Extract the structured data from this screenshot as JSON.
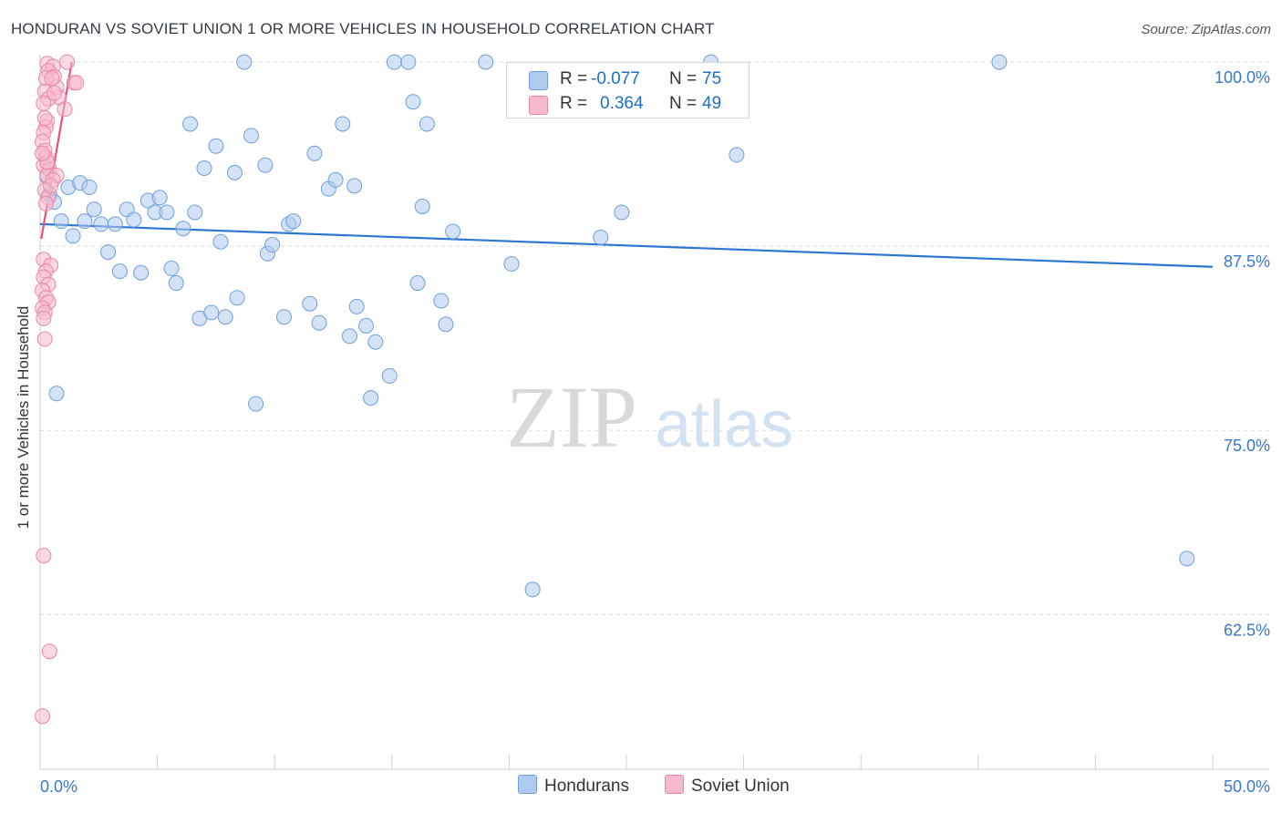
{
  "title": "HONDURAN VS SOVIET UNION 1 OR MORE VEHICLES IN HOUSEHOLD CORRELATION CHART",
  "source": "Source: ZipAtlas.com",
  "watermark": {
    "zip": "ZIP",
    "atlas": "atlas"
  },
  "legend": {
    "hondurans": {
      "r_label": "R =",
      "r_value": "-0.077",
      "n_label": "N =",
      "n_value": "75"
    },
    "soviet": {
      "r_label": "R =",
      "r_value": "0.364",
      "n_label": "N =",
      "n_value": "49"
    }
  },
  "bottom_legend": {
    "hondurans": "Hondurans",
    "soviet": "Soviet Union"
  },
  "colors": {
    "blue_fill": "#aecbef",
    "blue_stroke": "#6f9fd8",
    "blue_line": "#2f76d2",
    "pink_fill": "#f6b9cd",
    "pink_stroke": "#e887a7",
    "pink_line": "#e8517f",
    "tick_label": "#3b78c9",
    "grid": "#dddddd"
  },
  "chart_data": {
    "type": "scatter",
    "title": "HONDURAN VS SOVIET UNION 1 OR MORE VEHICLES IN HOUSEHOLD CORRELATION CHART",
    "xlabel": "",
    "ylabel": "1 or more Vehicles in Household",
    "xlim": [
      0,
      50
    ],
    "ylim": [
      52,
      100.5
    ],
    "x_tick_labels": [
      "0.0%",
      "50.0%"
    ],
    "y_ticks": [
      62.5,
      75.0,
      87.5,
      100.0
    ],
    "y_tick_labels": [
      "62.5%",
      "75.0%",
      "87.5%",
      "100.0%"
    ],
    "grid": true,
    "series": [
      {
        "name": "Hondurans",
        "r": -0.077,
        "n": 75,
        "trend": {
          "x": [
            0,
            50
          ],
          "y": [
            89.0,
            86.1
          ]
        },
        "points": [
          {
            "x": 0.4,
            "y": 91.0
          },
          {
            "x": 0.6,
            "y": 90.5
          },
          {
            "x": 0.7,
            "y": 77.5
          },
          {
            "x": 0.9,
            "y": 89.2
          },
          {
            "x": 1.2,
            "y": 91.5
          },
          {
            "x": 1.4,
            "y": 88.2
          },
          {
            "x": 1.7,
            "y": 91.8
          },
          {
            "x": 1.9,
            "y": 89.2
          },
          {
            "x": 2.1,
            "y": 91.5
          },
          {
            "x": 2.3,
            "y": 90.0
          },
          {
            "x": 2.6,
            "y": 89.0
          },
          {
            "x": 2.9,
            "y": 87.1
          },
          {
            "x": 3.2,
            "y": 89.0
          },
          {
            "x": 3.4,
            "y": 85.8
          },
          {
            "x": 3.7,
            "y": 90.0
          },
          {
            "x": 4.0,
            "y": 89.3
          },
          {
            "x": 4.3,
            "y": 85.7
          },
          {
            "x": 4.6,
            "y": 90.6
          },
          {
            "x": 4.9,
            "y": 89.8
          },
          {
            "x": 5.1,
            "y": 90.8
          },
          {
            "x": 5.4,
            "y": 89.8
          },
          {
            "x": 5.6,
            "y": 86.0
          },
          {
            "x": 5.8,
            "y": 85.0
          },
          {
            "x": 6.1,
            "y": 88.7
          },
          {
            "x": 6.4,
            "y": 95.8
          },
          {
            "x": 6.6,
            "y": 89.8
          },
          {
            "x": 6.8,
            "y": 82.6
          },
          {
            "x": 7.0,
            "y": 92.8
          },
          {
            "x": 7.3,
            "y": 83.0
          },
          {
            "x": 7.5,
            "y": 94.3
          },
          {
            "x": 7.7,
            "y": 87.8
          },
          {
            "x": 7.9,
            "y": 82.7
          },
          {
            "x": 8.3,
            "y": 92.5
          },
          {
            "x": 8.4,
            "y": 84.0
          },
          {
            "x": 8.7,
            "y": 100.0
          },
          {
            "x": 9.0,
            "y": 95.0
          },
          {
            "x": 9.2,
            "y": 76.8
          },
          {
            "x": 9.6,
            "y": 93.0
          },
          {
            "x": 9.7,
            "y": 87.0
          },
          {
            "x": 9.9,
            "y": 87.6
          },
          {
            "x": 10.4,
            "y": 82.7
          },
          {
            "x": 10.6,
            "y": 89.0
          },
          {
            "x": 10.8,
            "y": 89.2
          },
          {
            "x": 11.5,
            "y": 83.6
          },
          {
            "x": 11.7,
            "y": 93.8
          },
          {
            "x": 11.9,
            "y": 82.3
          },
          {
            "x": 12.3,
            "y": 91.4
          },
          {
            "x": 12.6,
            "y": 92.0
          },
          {
            "x": 12.9,
            "y": 95.8
          },
          {
            "x": 13.2,
            "y": 81.4
          },
          {
            "x": 13.4,
            "y": 91.6
          },
          {
            "x": 13.5,
            "y": 83.4
          },
          {
            "x": 13.9,
            "y": 82.1
          },
          {
            "x": 14.1,
            "y": 77.2
          },
          {
            "x": 14.3,
            "y": 81.0
          },
          {
            "x": 14.9,
            "y": 78.7
          },
          {
            "x": 15.1,
            "y": 100.0
          },
          {
            "x": 15.7,
            "y": 100.0
          },
          {
            "x": 15.9,
            "y": 97.3
          },
          {
            "x": 16.1,
            "y": 85.0
          },
          {
            "x": 16.3,
            "y": 90.2
          },
          {
            "x": 16.5,
            "y": 95.8
          },
          {
            "x": 17.1,
            "y": 83.8
          },
          {
            "x": 17.3,
            "y": 82.2
          },
          {
            "x": 17.6,
            "y": 88.5
          },
          {
            "x": 19.0,
            "y": 100.0
          },
          {
            "x": 20.1,
            "y": 86.3
          },
          {
            "x": 21.0,
            "y": 64.2
          },
          {
            "x": 23.9,
            "y": 88.1
          },
          {
            "x": 24.8,
            "y": 89.8
          },
          {
            "x": 28.6,
            "y": 100.0
          },
          {
            "x": 29.7,
            "y": 93.7
          },
          {
            "x": 40.9,
            "y": 100.0
          },
          {
            "x": 48.9,
            "y": 66.3
          },
          {
            "x": 0.3,
            "y": 92.2
          }
        ]
      },
      {
        "name": "Soviet Union",
        "r": 0.364,
        "n": 49,
        "trend": {
          "x": [
            0.05,
            1.35
          ],
          "y": [
            88.0,
            100.0
          ]
        },
        "points": [
          {
            "x": 1.15,
            "y": 100.0
          },
          {
            "x": 0.3,
            "y": 99.9
          },
          {
            "x": 0.55,
            "y": 99.7
          },
          {
            "x": 0.35,
            "y": 99.4
          },
          {
            "x": 0.6,
            "y": 99.0
          },
          {
            "x": 0.25,
            "y": 98.9
          },
          {
            "x": 1.45,
            "y": 98.6
          },
          {
            "x": 1.55,
            "y": 98.6
          },
          {
            "x": 0.7,
            "y": 98.3
          },
          {
            "x": 0.2,
            "y": 98.0
          },
          {
            "x": 0.8,
            "y": 97.6
          },
          {
            "x": 0.35,
            "y": 97.5
          },
          {
            "x": 0.15,
            "y": 97.2
          },
          {
            "x": 1.05,
            "y": 96.8
          },
          {
            "x": 0.3,
            "y": 96.0
          },
          {
            "x": 0.25,
            "y": 95.6
          },
          {
            "x": 0.15,
            "y": 95.2
          },
          {
            "x": 0.1,
            "y": 94.6
          },
          {
            "x": 0.2,
            "y": 94.0
          },
          {
            "x": 0.25,
            "y": 93.5
          },
          {
            "x": 0.15,
            "y": 93.0
          },
          {
            "x": 0.4,
            "y": 92.7
          },
          {
            "x": 0.3,
            "y": 92.3
          },
          {
            "x": 0.7,
            "y": 92.3
          },
          {
            "x": 0.55,
            "y": 92.0
          },
          {
            "x": 0.2,
            "y": 91.3
          },
          {
            "x": 0.35,
            "y": 90.8
          },
          {
            "x": 0.25,
            "y": 90.4
          },
          {
            "x": 0.15,
            "y": 86.6
          },
          {
            "x": 0.45,
            "y": 86.2
          },
          {
            "x": 0.25,
            "y": 85.8
          },
          {
            "x": 0.15,
            "y": 85.4
          },
          {
            "x": 0.35,
            "y": 84.9
          },
          {
            "x": 0.1,
            "y": 84.5
          },
          {
            "x": 0.25,
            "y": 84.0
          },
          {
            "x": 0.35,
            "y": 83.7
          },
          {
            "x": 0.1,
            "y": 83.3
          },
          {
            "x": 0.2,
            "y": 83.0
          },
          {
            "x": 0.15,
            "y": 82.6
          },
          {
            "x": 0.2,
            "y": 81.2
          },
          {
            "x": 0.15,
            "y": 66.5
          },
          {
            "x": 0.4,
            "y": 60.0
          },
          {
            "x": 0.1,
            "y": 55.6
          },
          {
            "x": 0.3,
            "y": 93.2
          },
          {
            "x": 0.45,
            "y": 91.6
          },
          {
            "x": 0.2,
            "y": 96.2
          },
          {
            "x": 0.1,
            "y": 93.8
          },
          {
            "x": 0.5,
            "y": 98.9
          },
          {
            "x": 0.6,
            "y": 97.9
          }
        ]
      }
    ]
  }
}
